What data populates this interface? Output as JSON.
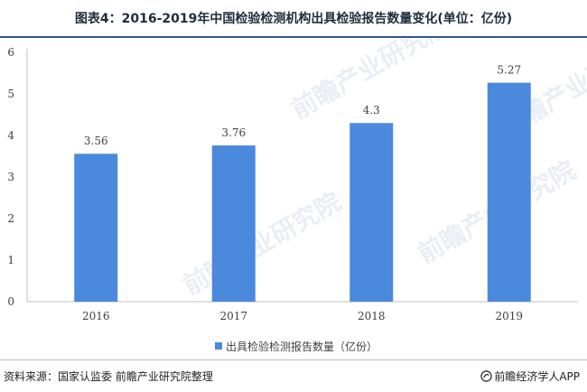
{
  "header": {
    "title": "图表4：2016-2019年中国检验检测机构出具检验报告数量变化(单位：亿份)"
  },
  "footer": {
    "source": "资料来源：国家认监委 前瞻产业研究院整理",
    "brand": "前瞻经济学人APP"
  },
  "watermark": {
    "text": "前瞻产业研究院"
  },
  "chart_data": {
    "type": "bar",
    "categories": [
      "2016",
      "2017",
      "2018",
      "2019"
    ],
    "series": [
      {
        "name": "出具检验检测报告数量（亿份）",
        "values": [
          3.56,
          3.76,
          4.3,
          5.27
        ],
        "labels": [
          "3.56",
          "3.76",
          "4.3",
          "5.27"
        ]
      }
    ],
    "ylim": [
      0,
      6
    ],
    "yticks": [
      0,
      1,
      2,
      3,
      4,
      5,
      6
    ],
    "grid": false,
    "legend": "bottom-center",
    "colors": {
      "bar": "#4a89dc",
      "axis": "#bfbfbf",
      "text": "#404040"
    }
  }
}
